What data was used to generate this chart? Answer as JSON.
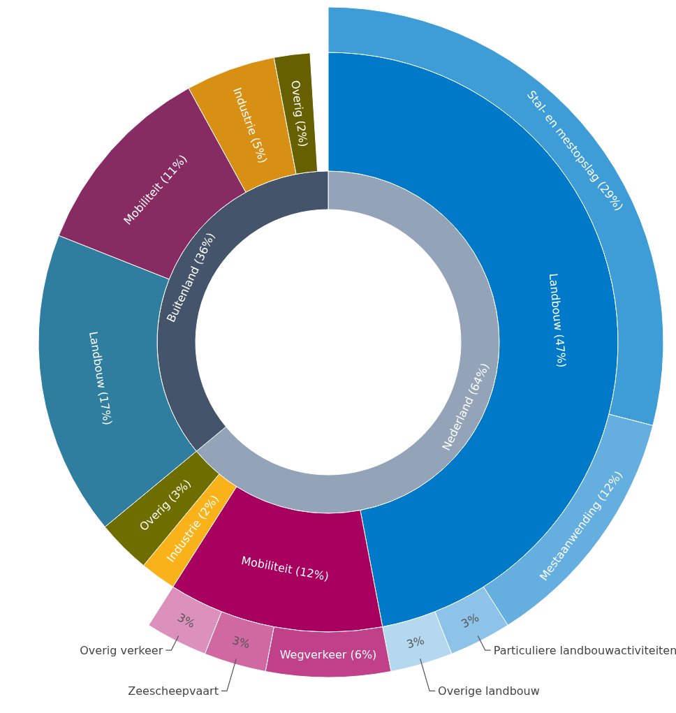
{
  "chart_data": [
    {
      "type": "donut",
      "categories": [
        "Nederland (64%)",
        "Buitenland (36%)"
      ],
      "values": [
        64,
        36
      ],
      "colors": [
        "#93a3b8",
        "#44546a"
      ]
    },
    {
      "type": "donut",
      "categories": [
        "Landbouw (47%)",
        "Mobiliteit (12%)",
        "Industrie (2%)",
        "Overig (3%)",
        "Landbouw (17%)",
        "Mobiliteit (11%)",
        "Industrie (5%)",
        "Overig (2%)"
      ],
      "values": [
        47,
        12,
        2,
        3,
        17,
        11,
        5,
        2
      ],
      "colors": [
        "#0079c8",
        "#a8005f",
        "#f9b21a",
        "#6e6e00",
        "#2f7ea0",
        "#872c63",
        "#d89014",
        "#666000"
      ]
    },
    {
      "type": "donut",
      "categories": [
        "Stal- en mestopslag (29%)",
        "Mestaanwending (12%)",
        "Particuliere landbouwactiviteiten",
        "Overige landbouw",
        "Wegverkeer (6%)",
        "Zeescheepvaart",
        "Overig verkeer"
      ],
      "values": [
        29,
        12,
        3,
        3,
        6,
        3,
        3
      ],
      "colors": [
        "#3e9cd6",
        "#64aee0",
        "#8dc3e8",
        "#b4d8f0",
        "#c0408a",
        "#d068a2",
        "#dc90bc"
      ],
      "value_labels": [
        null,
        null,
        "3%",
        "3%",
        null,
        "3%",
        "3%"
      ]
    }
  ]
}
